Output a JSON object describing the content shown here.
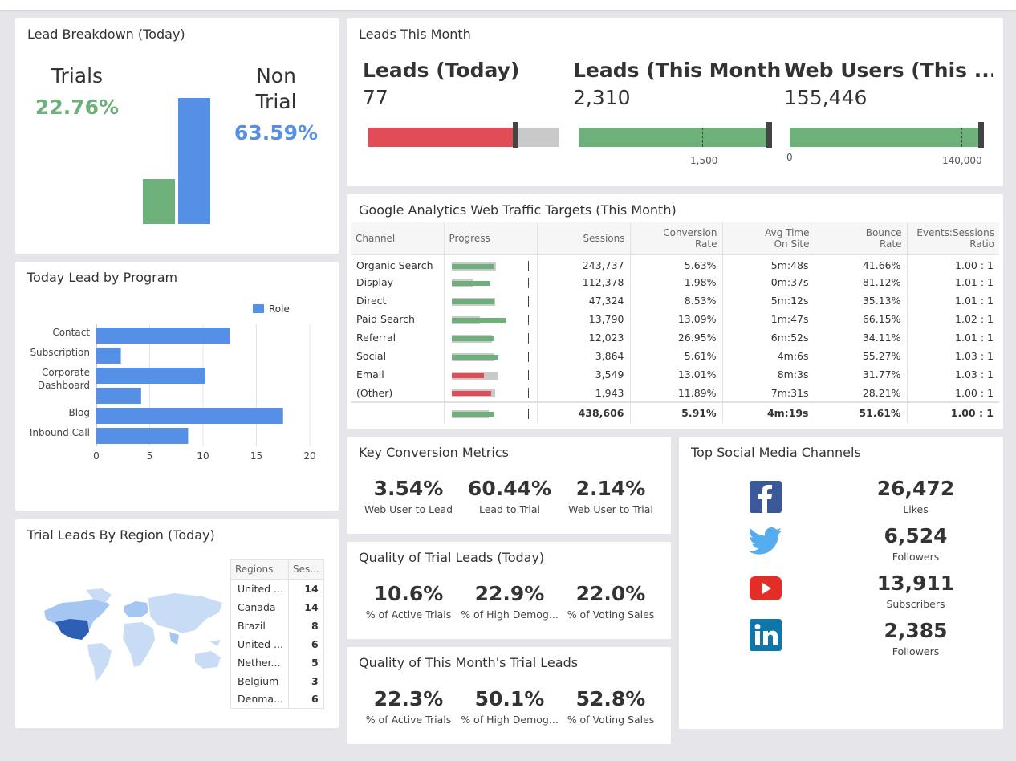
{
  "colors": {
    "green": "#6db07a",
    "blue": "#5590e6",
    "red": "#e24c56",
    "track": "#c9c9c9"
  },
  "lead_breakdown": {
    "title": "Lead Breakdown (Today)",
    "trials_label": "Trials",
    "trials_pct": "22.76%",
    "nontrial_label_1": "Non",
    "nontrial_label_2": "Trial",
    "nontrial_pct": "63.59%",
    "bars": [
      {
        "name": "Trials",
        "value": 22.76,
        "color": "#6db07a"
      },
      {
        "name": "Non Trial",
        "value": 63.59,
        "color": "#5590e6"
      }
    ]
  },
  "leads_month": {
    "title": "Leads This Month",
    "kpis": [
      {
        "title": "Leads (Today)",
        "value": "77",
        "fraction": 0.77,
        "color": "#e24c56",
        "ticks": []
      },
      {
        "title": "Leads (This Month)",
        "value": "2,310",
        "fraction": 1.0,
        "color": "#6db07a",
        "tick_label": "1,500"
      },
      {
        "title": "Web Users (This ...",
        "value": "155,446",
        "fraction": 1.0,
        "color": "#6db07a",
        "tick_label_start": "0",
        "tick_label": "140,000"
      }
    ]
  },
  "ga": {
    "title": "Google Analytics Web Traffic Targets (This Month)",
    "columns": [
      "Channel",
      "Progress",
      "Sessions",
      "Conversion Rate",
      "Avg Time On Site",
      "Bounce Rate",
      "Events:Sessions Ratio"
    ],
    "rows": [
      {
        "channel": "Organic Search",
        "sessions": "243,737",
        "conv": "5.63%",
        "time": "5m:48s",
        "bounce": "41.66%",
        "ratio": "1.00 : 1",
        "bg": 0.55,
        "fg": 0.52,
        "color": "#6db07a"
      },
      {
        "channel": "Display",
        "sessions": "112,378",
        "conv": "1.98%",
        "time": "0m:37s",
        "bounce": "81.12%",
        "ratio": "1.01 : 1",
        "bg": 0.26,
        "fg": 0.48,
        "color": "#6db07a"
      },
      {
        "channel": "Direct",
        "sessions": "47,324",
        "conv": "8.53%",
        "time": "5m:12s",
        "bounce": "35.13%",
        "ratio": "1.01 : 1",
        "bg": 0.54,
        "fg": 0.53,
        "color": "#6db07a"
      },
      {
        "channel": "Paid Search",
        "sessions": "13,790",
        "conv": "13.09%",
        "time": "1m:47s",
        "bounce": "66.15%",
        "ratio": "1.02 : 1",
        "bg": 0.35,
        "fg": 0.67,
        "color": "#6db07a"
      },
      {
        "channel": "Referral",
        "sessions": "12,023",
        "conv": "26.95%",
        "time": "6m:52s",
        "bounce": "34.11%",
        "ratio": "1.01 : 1",
        "bg": 0.5,
        "fg": 0.53,
        "color": "#6db07a"
      },
      {
        "channel": "Social",
        "sessions": "3,864",
        "conv": "5.61%",
        "time": "4m:6s",
        "bounce": "55.27%",
        "ratio": "1.03 : 1",
        "bg": 0.53,
        "fg": 0.58,
        "color": "#6db07a"
      },
      {
        "channel": "Email",
        "sessions": "3,549",
        "conv": "13.01%",
        "time": "8m:3s",
        "bounce": "31.77%",
        "ratio": "1.03 : 1",
        "bg": 0.58,
        "fg": 0.4,
        "color": "#e24c56"
      },
      {
        "channel": "(Other)",
        "sessions": "1,943",
        "conv": "11.89%",
        "time": "7m:31s",
        "bounce": "28.21%",
        "ratio": "1.00 : 1",
        "bg": 0.54,
        "fg": 0.49,
        "color": "#e24c56"
      }
    ],
    "total": {
      "sessions": "438,606",
      "conv": "5.91%",
      "time": "4m:19s",
      "bounce": "51.61%",
      "ratio": "1.00 : 1",
      "bg": 0.46,
      "fg": 0.53
    }
  },
  "program": {
    "title": "Today Lead by Program",
    "legend": "Role"
  },
  "chart_data": {
    "type": "bar",
    "orientation": "horizontal",
    "categories": [
      "Contact",
      "Subscription",
      "Corporate Dashboard",
      "",
      "Blog",
      "Inbound Call"
    ],
    "series": [
      {
        "name": "Role",
        "values": [
          12.5,
          2.3,
          10.2,
          4.2,
          17.5,
          8.6
        ]
      }
    ],
    "xticks": [
      "0",
      "5",
      "10",
      "15",
      "20"
    ],
    "xlim": [
      0,
      20
    ],
    "grid": true,
    "legend_position": "top-right"
  },
  "region": {
    "title": "Trial Leads By Region (Today)",
    "col_region": "Regions",
    "col_sessions": "Ses...",
    "rows": [
      {
        "name": "United ...",
        "value": "14"
      },
      {
        "name": "Canada",
        "value": "14"
      },
      {
        "name": "Brazil",
        "value": "8"
      },
      {
        "name": "United ...",
        "value": "6"
      },
      {
        "name": "Nether...",
        "value": "5"
      },
      {
        "name": "Belgium",
        "value": "3"
      },
      {
        "name": "Denma...",
        "value": "6"
      }
    ]
  },
  "key_conversion": {
    "title": "Key Conversion Metrics",
    "metrics": [
      {
        "value": "3.54%",
        "label": "Web User to Lead"
      },
      {
        "value": "60.44%",
        "label": "Lead to Trial"
      },
      {
        "value": "2.14%",
        "label": "Web User to Trial"
      }
    ]
  },
  "quality_today": {
    "title": "Quality of Trial Leads (Today)",
    "metrics": [
      {
        "value": "10.6%",
        "label": "% of Active Trials"
      },
      {
        "value": "22.9%",
        "label": "% of High Demog..."
      },
      {
        "value": "22.0%",
        "label": "% of Voting Sales"
      }
    ]
  },
  "quality_month": {
    "title": "Quality of This Month's Trial Leads",
    "metrics": [
      {
        "value": "22.3%",
        "label": "% of Active Trials"
      },
      {
        "value": "50.1%",
        "label": "% of High Demog..."
      },
      {
        "value": "52.8%",
        "label": "% of Voting Sales"
      }
    ]
  },
  "social": {
    "title": "Top Social Media Channels",
    "channels": [
      {
        "icon": "facebook-icon",
        "value": "26,472",
        "label": "Likes"
      },
      {
        "icon": "twitter-icon",
        "value": "6,524",
        "label": "Followers"
      },
      {
        "icon": "youtube-icon",
        "value": "13,911",
        "label": "Subscribers"
      },
      {
        "icon": "linkedin-icon",
        "value": "2,385",
        "label": "Followers"
      }
    ]
  }
}
